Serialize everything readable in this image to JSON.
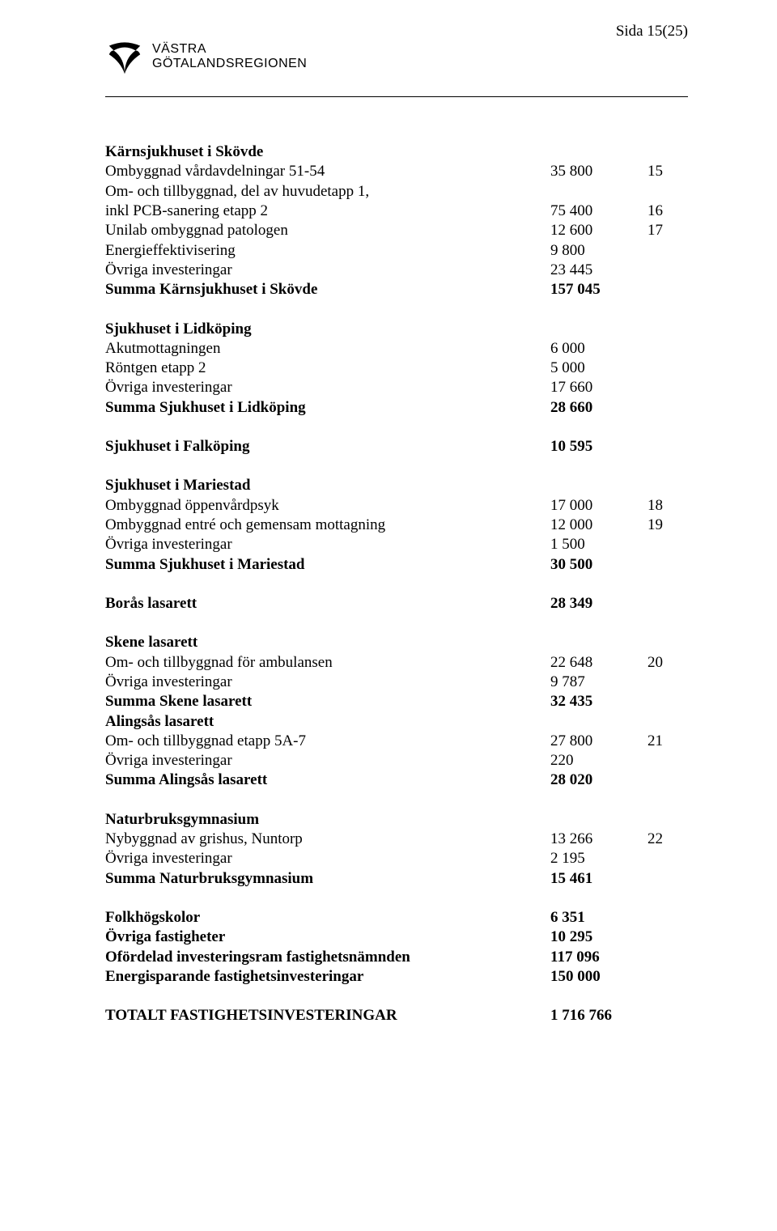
{
  "page_number": "Sida 15(25)",
  "logo": {
    "line1": "VÄSTRA",
    "line2": "GÖTALANDSREGIONEN"
  },
  "sections": [
    {
      "rows": [
        {
          "label": "Kärnsjukhuset i Skövde",
          "a": "",
          "b": "",
          "bold": true
        },
        {
          "label": "Ombyggnad vårdavdelningar 51-54",
          "a": "35 800",
          "b": "15"
        },
        {
          "label": "Om- och tillbyggnad, del av huvudetapp 1,",
          "a": "",
          "b": ""
        },
        {
          "label": "inkl PCB-sanering etapp 2",
          "a": "75 400",
          "b": "16"
        },
        {
          "label": "Unilab ombyggnad patologen",
          "a": "12 600",
          "b": "17"
        },
        {
          "label": "Energieffektivisering",
          "a": "9 800",
          "b": ""
        },
        {
          "label": "Övriga investeringar",
          "a": "23 445",
          "b": ""
        },
        {
          "label": "Summa Kärnsjukhuset i Skövde",
          "a": "157 045",
          "b": "",
          "bold": true
        }
      ]
    },
    {
      "rows": [
        {
          "label": "Sjukhuset i Lidköping",
          "a": "",
          "b": "",
          "bold": true
        },
        {
          "label": "Akutmottagningen",
          "a": "6 000",
          "b": ""
        },
        {
          "label": "Röntgen etapp 2",
          "a": "5 000",
          "b": ""
        },
        {
          "label": "Övriga investeringar",
          "a": "17 660",
          "b": ""
        },
        {
          "label": "Summa Sjukhuset i Lidköping",
          "a": "28 660",
          "b": "",
          "bold": true
        }
      ]
    },
    {
      "rows": [
        {
          "label": "Sjukhuset i Falköping",
          "a": "10 595",
          "b": "",
          "bold": true
        }
      ]
    },
    {
      "rows": [
        {
          "label": "Sjukhuset i Mariestad",
          "a": "",
          "b": "",
          "bold": true
        },
        {
          "label": "Ombyggnad öppenvårdpsyk",
          "a": "17 000",
          "b": "18"
        },
        {
          "label": "Ombyggnad entré och gemensam mottagning",
          "a": "12 000",
          "b": "19"
        },
        {
          "label": "Övriga investeringar",
          "a": "1 500",
          "b": ""
        },
        {
          "label": "Summa Sjukhuset i Mariestad",
          "a": "30 500",
          "b": "",
          "bold": true
        }
      ]
    },
    {
      "rows": [
        {
          "label": "Borås lasarett",
          "a": "28 349",
          "b": "",
          "bold": true
        }
      ]
    },
    {
      "rows": [
        {
          "label": "Skene lasarett",
          "a": "",
          "b": "",
          "bold": true
        },
        {
          "label": "Om- och tillbyggnad för ambulansen",
          "a": "22 648",
          "b": "20"
        },
        {
          "label": "Övriga investeringar",
          "a": "9 787",
          "b": ""
        },
        {
          "label": "Summa Skene lasarett",
          "a": "32 435",
          "b": "",
          "bold": true
        },
        {
          "label": "Alingsås lasarett",
          "a": "",
          "b": "",
          "bold": true
        },
        {
          "label": "Om- och tillbyggnad etapp 5A-7",
          "a": "27 800",
          "b": "21"
        },
        {
          "label": "Övriga investeringar",
          "a": "220",
          "b": ""
        },
        {
          "label": "Summa Alingsås lasarett",
          "a": "28 020",
          "b": "",
          "bold": true
        }
      ]
    },
    {
      "rows": [
        {
          "label": "Naturbruksgymnasium",
          "a": "",
          "b": "",
          "bold": true
        },
        {
          "label": "Nybyggnad av grishus, Nuntorp",
          "a": "13 266",
          "b": "22"
        },
        {
          "label": "Övriga investeringar",
          "a": "2 195",
          "b": ""
        },
        {
          "label": "Summa Naturbruksgymnasium",
          "a": "15 461",
          "b": "",
          "bold": true
        }
      ]
    },
    {
      "rows": [
        {
          "label": "Folkhögskolor",
          "a": "6 351",
          "b": "",
          "bold": true
        },
        {
          "label": "Övriga fastigheter",
          "a": "10 295",
          "b": "",
          "bold": true
        },
        {
          "label": "Ofördelad investeringsram fastighetsnämnden",
          "a": "117 096",
          "b": "",
          "bold": true
        },
        {
          "label": "Energisparande fastighetsinvesteringar",
          "a": "150 000",
          "b": "",
          "bold": true
        }
      ]
    },
    {
      "rows": [
        {
          "label": "TOTALT FASTIGHETSINVESTERINGAR",
          "a": "1 716 766",
          "b": "",
          "bold": true
        }
      ]
    }
  ]
}
